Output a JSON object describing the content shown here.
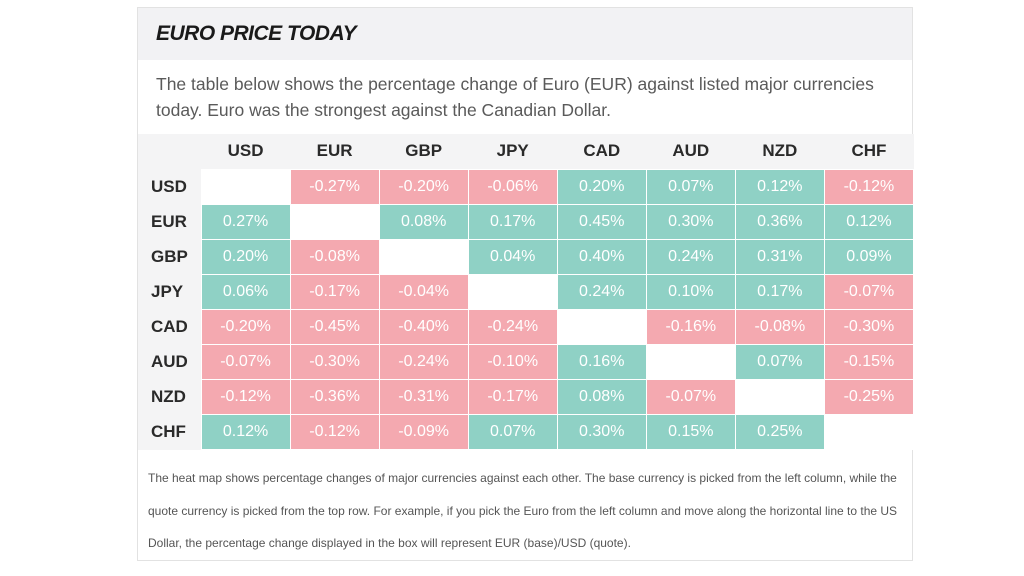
{
  "header": {
    "title": "EURO PRICE TODAY"
  },
  "intro": {
    "text": "The table below shows the percentage change of Euro (EUR) against listed major currencies today. Euro was the strongest against the Canadian Dollar."
  },
  "heatmap": {
    "columns": [
      "USD",
      "EUR",
      "GBP",
      "JPY",
      "CAD",
      "AUD",
      "NZD",
      "CHF"
    ],
    "rows": [
      {
        "currency": "USD",
        "values": [
          "",
          "-0.27%",
          "-0.20%",
          "-0.06%",
          "0.20%",
          "0.07%",
          "0.12%",
          "-0.12%"
        ]
      },
      {
        "currency": "EUR",
        "values": [
          "0.27%",
          "",
          "0.08%",
          "0.17%",
          "0.45%",
          "0.30%",
          "0.36%",
          "0.12%"
        ]
      },
      {
        "currency": "GBP",
        "values": [
          "0.20%",
          "-0.08%",
          "",
          "0.04%",
          "0.40%",
          "0.24%",
          "0.31%",
          "0.09%"
        ]
      },
      {
        "currency": "JPY",
        "values": [
          "0.06%",
          "-0.17%",
          "-0.04%",
          "",
          "0.24%",
          "0.10%",
          "0.17%",
          "-0.07%"
        ]
      },
      {
        "currency": "CAD",
        "values": [
          "-0.20%",
          "-0.45%",
          "-0.40%",
          "-0.24%",
          "",
          "-0.16%",
          "-0.08%",
          "-0.30%"
        ]
      },
      {
        "currency": "AUD",
        "values": [
          "-0.07%",
          "-0.30%",
          "-0.24%",
          "-0.10%",
          "0.16%",
          "",
          "0.07%",
          "-0.15%"
        ]
      },
      {
        "currency": "NZD",
        "values": [
          "-0.12%",
          "-0.36%",
          "-0.31%",
          "-0.17%",
          "0.08%",
          "-0.07%",
          "",
          "-0.25%"
        ]
      },
      {
        "currency": "CHF",
        "values": [
          "0.12%",
          "-0.12%",
          "-0.09%",
          "0.07%",
          "0.30%",
          "0.15%",
          "0.25%",
          ""
        ]
      }
    ],
    "colors": {
      "positive": "#8fd1c5",
      "negative": "#f4a9b0",
      "empty": "#ffffff"
    }
  },
  "note": {
    "text": "The heat map shows percentage changes of major currencies against each other. The base currency is picked from the left column, while the quote currency is picked from the top row. For example, if you pick the Euro from the left column and move along the horizontal line to the US Dollar, the percentage change displayed in the box will represent EUR (base)/USD (quote)."
  }
}
